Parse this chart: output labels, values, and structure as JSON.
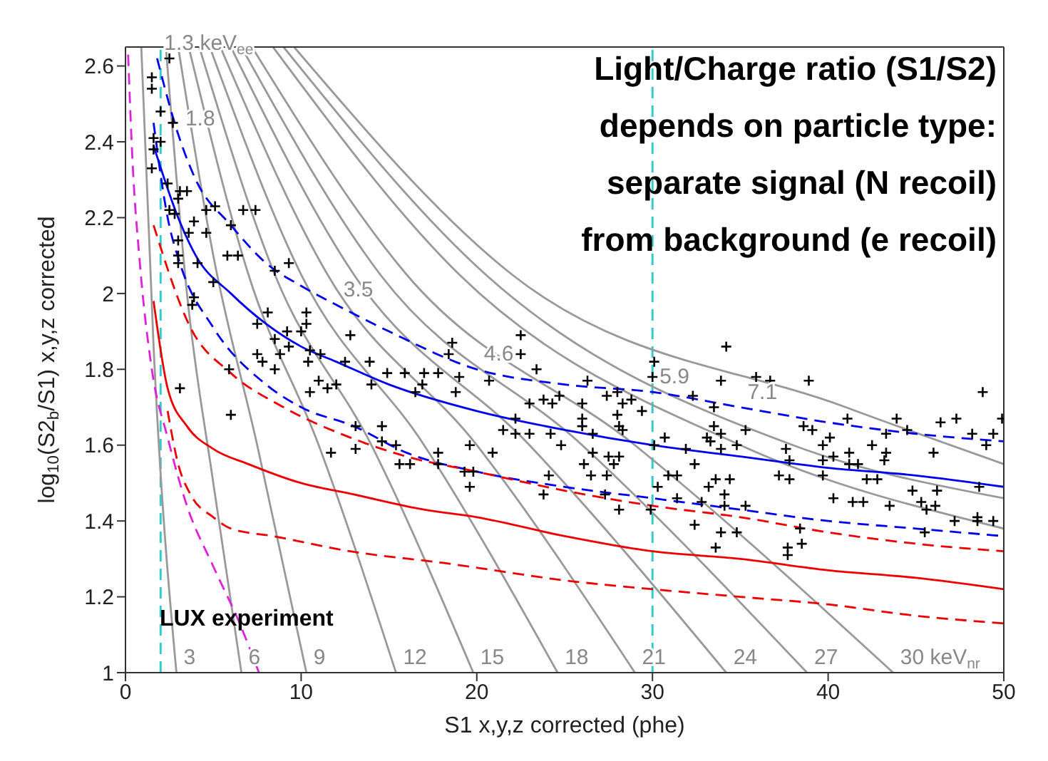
{
  "chart_data": {
    "type": "line",
    "title": "Light/Charge ratio (S1/S2)\ndepends on particle type:\nseparate signal (N recoil)\nfrom background (e recoil)",
    "xlabel": "S1 x,y,z corrected (phe)",
    "ylabel": "log$_{10}$(S2$_{b}$/S1) x,y,z corrected",
    "xlim": [
      0,
      50
    ],
    "xticks": [
      0,
      10,
      20,
      30,
      40,
      50
    ],
    "ylim": [
      1,
      2.65
    ],
    "yticks": [
      1,
      1.2,
      1.4,
      1.6,
      1.8,
      2,
      2.2,
      2.4,
      2.6
    ],
    "annotations": [
      "LUX experiment",
      {
        "text": "1.3 keV$_{ee}$",
        "x": 1.8,
        "y": 2.62
      },
      {
        "text": "1.8",
        "x": 3,
        "y": 2.42
      },
      {
        "text": "3.5",
        "x": 12,
        "y": 1.97
      },
      {
        "text": "4.6",
        "x": 20,
        "y": 1.8
      },
      {
        "text": "5.9",
        "x": 30,
        "y": 1.74
      },
      {
        "text": "7.1",
        "x": 35,
        "y": 1.7
      },
      {
        "text": "3",
        "x": 2.9,
        "y": 1.0
      },
      {
        "text": "6",
        "x": 6.6,
        "y": 1.0
      },
      {
        "text": "9",
        "x": 10.3,
        "y": 1.0
      },
      {
        "text": "12",
        "x": 15.4,
        "y": 1.0
      },
      {
        "text": "15",
        "x": 19.8,
        "y": 1.0
      },
      {
        "text": "18",
        "x": 24.6,
        "y": 1.0
      },
      {
        "text": "21",
        "x": 29,
        "y": 1.0
      },
      {
        "text": "24",
        "x": 34.2,
        "y": 1.0
      },
      {
        "text": "27",
        "x": 38.8,
        "y": 1.0
      },
      {
        "text": "30 keV$_{nr}$",
        "x": 43.7,
        "y": 1.0
      }
    ],
    "ref_lines": [
      {
        "axis": "x",
        "value": 2,
        "color": "#33cccc",
        "line_style": "dashed"
      },
      {
        "axis": "x",
        "value": 30,
        "color": "#33cccc",
        "line_style": "dashed"
      }
    ],
    "series": [
      {
        "color": "#999999",
        "x": [
          0.9,
          1.6,
          2.9
        ],
        "values": [
          2.65,
          1.86,
          1.0
        ]
      },
      {
        "color": "#999999",
        "x": [
          2.3,
          3.5,
          5,
          6.6
        ],
        "values": [
          2.65,
          2.0,
          1.5,
          1.0
        ]
      },
      {
        "color": "#999999",
        "x": [
          3.0,
          5,
          7.5,
          10.3
        ],
        "values": [
          2.65,
          2.1,
          1.6,
          1.0
        ]
      },
      {
        "color": "#999999",
        "x": [
          3.6,
          7,
          11,
          15.4
        ],
        "values": [
          2.65,
          2.05,
          1.6,
          1.0
        ]
      },
      {
        "color": "#999999",
        "x": [
          4.2,
          8.5,
          14,
          19.8
        ],
        "values": [
          2.65,
          2.05,
          1.6,
          1.0
        ]
      },
      {
        "color": "#999999",
        "x": [
          4.8,
          10,
          17,
          24.6
        ],
        "values": [
          2.65,
          2.05,
          1.6,
          1.0
        ]
      },
      {
        "color": "#999999",
        "x": [
          5.4,
          11.5,
          20,
          29
        ],
        "values": [
          2.65,
          2.05,
          1.6,
          1.0
        ]
      },
      {
        "color": "#999999",
        "x": [
          6,
          13,
          23,
          34.2
        ],
        "values": [
          2.65,
          2.05,
          1.6,
          1.0
        ]
      },
      {
        "color": "#999999",
        "x": [
          6.6,
          14.5,
          26,
          38.8
        ],
        "values": [
          2.65,
          2.05,
          1.6,
          1.0
        ]
      },
      {
        "color": "#999999",
        "x": [
          7.2,
          16,
          29,
          43.7
        ],
        "values": [
          2.65,
          2.05,
          1.6,
          1.0
        ]
      },
      {
        "color": "#999999",
        "x": [
          8.4,
          19,
          35,
          50
        ],
        "values": [
          2.65,
          2.05,
          1.6,
          1.38
        ]
      },
      {
        "color": "#999999",
        "x": [
          9,
          20.5,
          38,
          50
        ],
        "values": [
          2.65,
          2.05,
          1.6,
          1.46
        ]
      },
      {
        "color": "#999999",
        "x": [
          9.6,
          22,
          41,
          50
        ],
        "values": [
          2.65,
          2.05,
          1.7,
          1.55
        ]
      },
      {
        "color": "#dd22dd",
        "line_style": "dashed",
        "x": [
          0.15,
          0.4,
          0.8,
          1.5,
          2.4,
          3.5,
          5,
          6.5,
          7.6
        ],
        "values": [
          2.63,
          2.35,
          2.09,
          1.8,
          1.62,
          1.44,
          1.28,
          1.13,
          1.0
        ]
      },
      {
        "color": "#0000ee",
        "x": [
          1.6,
          3,
          4,
          6,
          8,
          10,
          12,
          15,
          20,
          25,
          30,
          35,
          40,
          45,
          50
        ],
        "values": [
          2.39,
          2.2,
          2.1,
          2.0,
          1.92,
          1.86,
          1.82,
          1.76,
          1.69,
          1.64,
          1.6,
          1.57,
          1.54,
          1.52,
          1.49
        ]
      },
      {
        "color": "#0000ee",
        "line_style": "dashed",
        "x": [
          1.8,
          3,
          4,
          6,
          8,
          10,
          12,
          15,
          20,
          25,
          30,
          35,
          40,
          45,
          50
        ],
        "values": [
          2.62,
          2.42,
          2.3,
          2.18,
          2.08,
          2.02,
          1.97,
          1.9,
          1.8,
          1.76,
          1.74,
          1.7,
          1.66,
          1.63,
          1.61
        ]
      },
      {
        "color": "#0000ee",
        "line_style": "dashed",
        "x": [
          1.6,
          2.4,
          3.1,
          5,
          8,
          10,
          13,
          16,
          20,
          25,
          30,
          35,
          40,
          45,
          50
        ],
        "values": [
          2.45,
          2.2,
          2.08,
          1.91,
          1.76,
          1.7,
          1.65,
          1.58,
          1.53,
          1.49,
          1.46,
          1.43,
          1.4,
          1.38,
          1.36
        ]
      },
      {
        "color": "#ee0000",
        "x": [
          1.6,
          2.4,
          3.5,
          5,
          7,
          10,
          13,
          17,
          20,
          25,
          30,
          35,
          40,
          45,
          50
        ],
        "values": [
          1.98,
          1.75,
          1.65,
          1.59,
          1.55,
          1.5,
          1.47,
          1.43,
          1.41,
          1.36,
          1.32,
          1.3,
          1.27,
          1.25,
          1.22
        ]
      },
      {
        "color": "#ee0000",
        "line_style": "dashed",
        "x": [
          1.6,
          3.7,
          6,
          9,
          12.8,
          16,
          20,
          25,
          30,
          35,
          40,
          45,
          50
        ],
        "values": [
          2.18,
          1.91,
          1.79,
          1.7,
          1.62,
          1.57,
          1.53,
          1.48,
          1.44,
          1.41,
          1.37,
          1.34,
          1.32
        ]
      },
      {
        "color": "#ee0000",
        "line_style": "dashed",
        "x": [
          2.4,
          3,
          3.7,
          5,
          6,
          8.4,
          12.8,
          18,
          25.6,
          30,
          35,
          40,
          45,
          50
        ],
        "values": [
          1.69,
          1.55,
          1.47,
          1.41,
          1.38,
          1.36,
          1.32,
          1.29,
          1.24,
          1.22,
          1.2,
          1.18,
          1.15,
          1.13
        ]
      },
      {
        "type": "scatter",
        "color": "#000000",
        "marker": "cross",
        "x": [
          2.5,
          1.5,
          1.5,
          2.0,
          2.7,
          1.6,
          2.0,
          1.6,
          1.5,
          2.4,
          3.1,
          3.5,
          3.0,
          2.5,
          4.6,
          5.1,
          6.7,
          7.4,
          2.8,
          3.9,
          6.0,
          3.6,
          4.6,
          3.0,
          3.0,
          5.8,
          6.4,
          3.0,
          4.1,
          8.5,
          9.3,
          5.0,
          3.9,
          3.8,
          8.1,
          10.3,
          7.5,
          10.3,
          9.2,
          8.5,
          10.0,
          12.8,
          7.5,
          8.8,
          9.3,
          10.5,
          22.5,
          22.5,
          18.6,
          18.4,
          11.1,
          7.8,
          12.5,
          13.9,
          5.9,
          8.5,
          10.4,
          11.0,
          14.0,
          14.9,
          15.9,
          17.0,
          17.8,
          19.0,
          20.7,
          16.9,
          16.5,
          18.8,
          23.4,
          10.5,
          11.5,
          12.0,
          3.1,
          6.0,
          13.1,
          14.6,
          14.6,
          13.1,
          15.4,
          11.7,
          15.6,
          16.2,
          17.8,
          17.8,
          19.6,
          20.9,
          19.3,
          19.8,
          19.6,
          24.1,
          23.8,
          21.5,
          22.2,
          23.0,
          24.2,
          24.8,
          22.2,
          23.0,
          23.8,
          24.3,
          34.2,
          30.1,
          30.0,
          33.9,
          35.9,
          36.7,
          38.9,
          26.3,
          28.0,
          28.3,
          28.8,
          27.4,
          24.7,
          26.0,
          29.4,
          28.0,
          28.1,
          26.0,
          26.0,
          26.6,
          28.3,
          32.3,
          33.5,
          30.7,
          30.1,
          31.9,
          33.1,
          33.5,
          33.9,
          35.3,
          34.8,
          33.9,
          33.3,
          32.4,
          26.6,
          27.5,
          28.1,
          27.8,
          26.1,
          26.5,
          27.4,
          30.9,
          31.4,
          33.2,
          33.6,
          34.1,
          34.4,
          30.3,
          31.4,
          32.8,
          34.1,
          35.3,
          27.3,
          28.1,
          29.9,
          32.4,
          33.9,
          34.8,
          33.6,
          38.6,
          39.1,
          40.1,
          39.7,
          37.6,
          37.8,
          39.7,
          40.3,
          41.2,
          41.2,
          41.7,
          37.2,
          37.8,
          39.7,
          40.3,
          41.1,
          42.5,
          43.3,
          43.2,
          43.3,
          43.9,
          44.5,
          42.2,
          42.8,
          41.4,
          42.0,
          43.5,
          44.8,
          45.3,
          45.6,
          46.2,
          46.1,
          46.4,
          47.3,
          46.0,
          48.2,
          49.0,
          49.4,
          48.6,
          47.2,
          48.5,
          48.5,
          49.4,
          48.8,
          49.9,
          45.5,
          37.7,
          38.5,
          37.7,
          38.4
        ],
        "values": [
          2.62,
          2.57,
          2.54,
          2.48,
          2.45,
          2.41,
          2.4,
          2.38,
          2.33,
          2.29,
          2.27,
          2.27,
          2.25,
          2.22,
          2.22,
          2.23,
          2.22,
          2.22,
          2.21,
          2.19,
          2.18,
          2.16,
          2.16,
          2.14,
          2.1,
          2.1,
          2.1,
          2.08,
          2.08,
          2.06,
          2.08,
          2.03,
          1.99,
          1.97,
          1.95,
          1.95,
          1.92,
          1.92,
          1.9,
          1.88,
          1.9,
          1.89,
          1.84,
          1.84,
          1.86,
          1.85,
          1.89,
          1.84,
          1.87,
          1.84,
          1.84,
          1.82,
          1.82,
          1.82,
          1.8,
          1.8,
          1.82,
          1.77,
          1.76,
          1.79,
          1.79,
          1.79,
          1.79,
          1.78,
          1.77,
          1.76,
          1.74,
          1.74,
          1.8,
          1.74,
          1.75,
          1.76,
          1.75,
          1.68,
          1.65,
          1.65,
          1.61,
          1.59,
          1.6,
          1.58,
          1.55,
          1.55,
          1.58,
          1.55,
          1.6,
          1.58,
          1.53,
          1.53,
          1.49,
          1.52,
          1.47,
          1.64,
          1.63,
          1.63,
          1.63,
          1.6,
          1.67,
          1.71,
          1.72,
          1.71,
          1.86,
          1.82,
          1.78,
          1.77,
          1.78,
          1.77,
          1.77,
          1.77,
          1.74,
          1.71,
          1.72,
          1.73,
          1.73,
          1.71,
          1.69,
          1.68,
          1.65,
          1.67,
          1.65,
          1.63,
          1.64,
          1.73,
          1.7,
          1.62,
          1.6,
          1.59,
          1.62,
          1.65,
          1.63,
          1.64,
          1.6,
          1.59,
          1.61,
          1.55,
          1.58,
          1.57,
          1.57,
          1.55,
          1.55,
          1.52,
          1.52,
          1.52,
          1.52,
          1.49,
          1.51,
          1.47,
          1.51,
          1.49,
          1.46,
          1.45,
          1.44,
          1.44,
          1.47,
          1.43,
          1.43,
          1.39,
          1.37,
          1.37,
          1.33,
          1.65,
          1.64,
          1.62,
          1.6,
          1.59,
          1.56,
          1.56,
          1.57,
          1.58,
          1.55,
          1.55,
          1.52,
          1.51,
          1.52,
          1.46,
          1.67,
          1.6,
          1.58,
          1.56,
          1.63,
          1.67,
          1.64,
          1.51,
          1.51,
          1.45,
          1.45,
          1.44,
          1.48,
          1.45,
          1.43,
          1.48,
          1.44,
          1.66,
          1.67,
          1.58,
          1.63,
          1.6,
          1.63,
          1.49,
          1.4,
          1.41,
          1.4,
          1.4,
          1.74,
          1.67,
          1.37,
          1.33,
          1.34,
          1.31,
          1.38
        ]
      }
    ]
  }
}
